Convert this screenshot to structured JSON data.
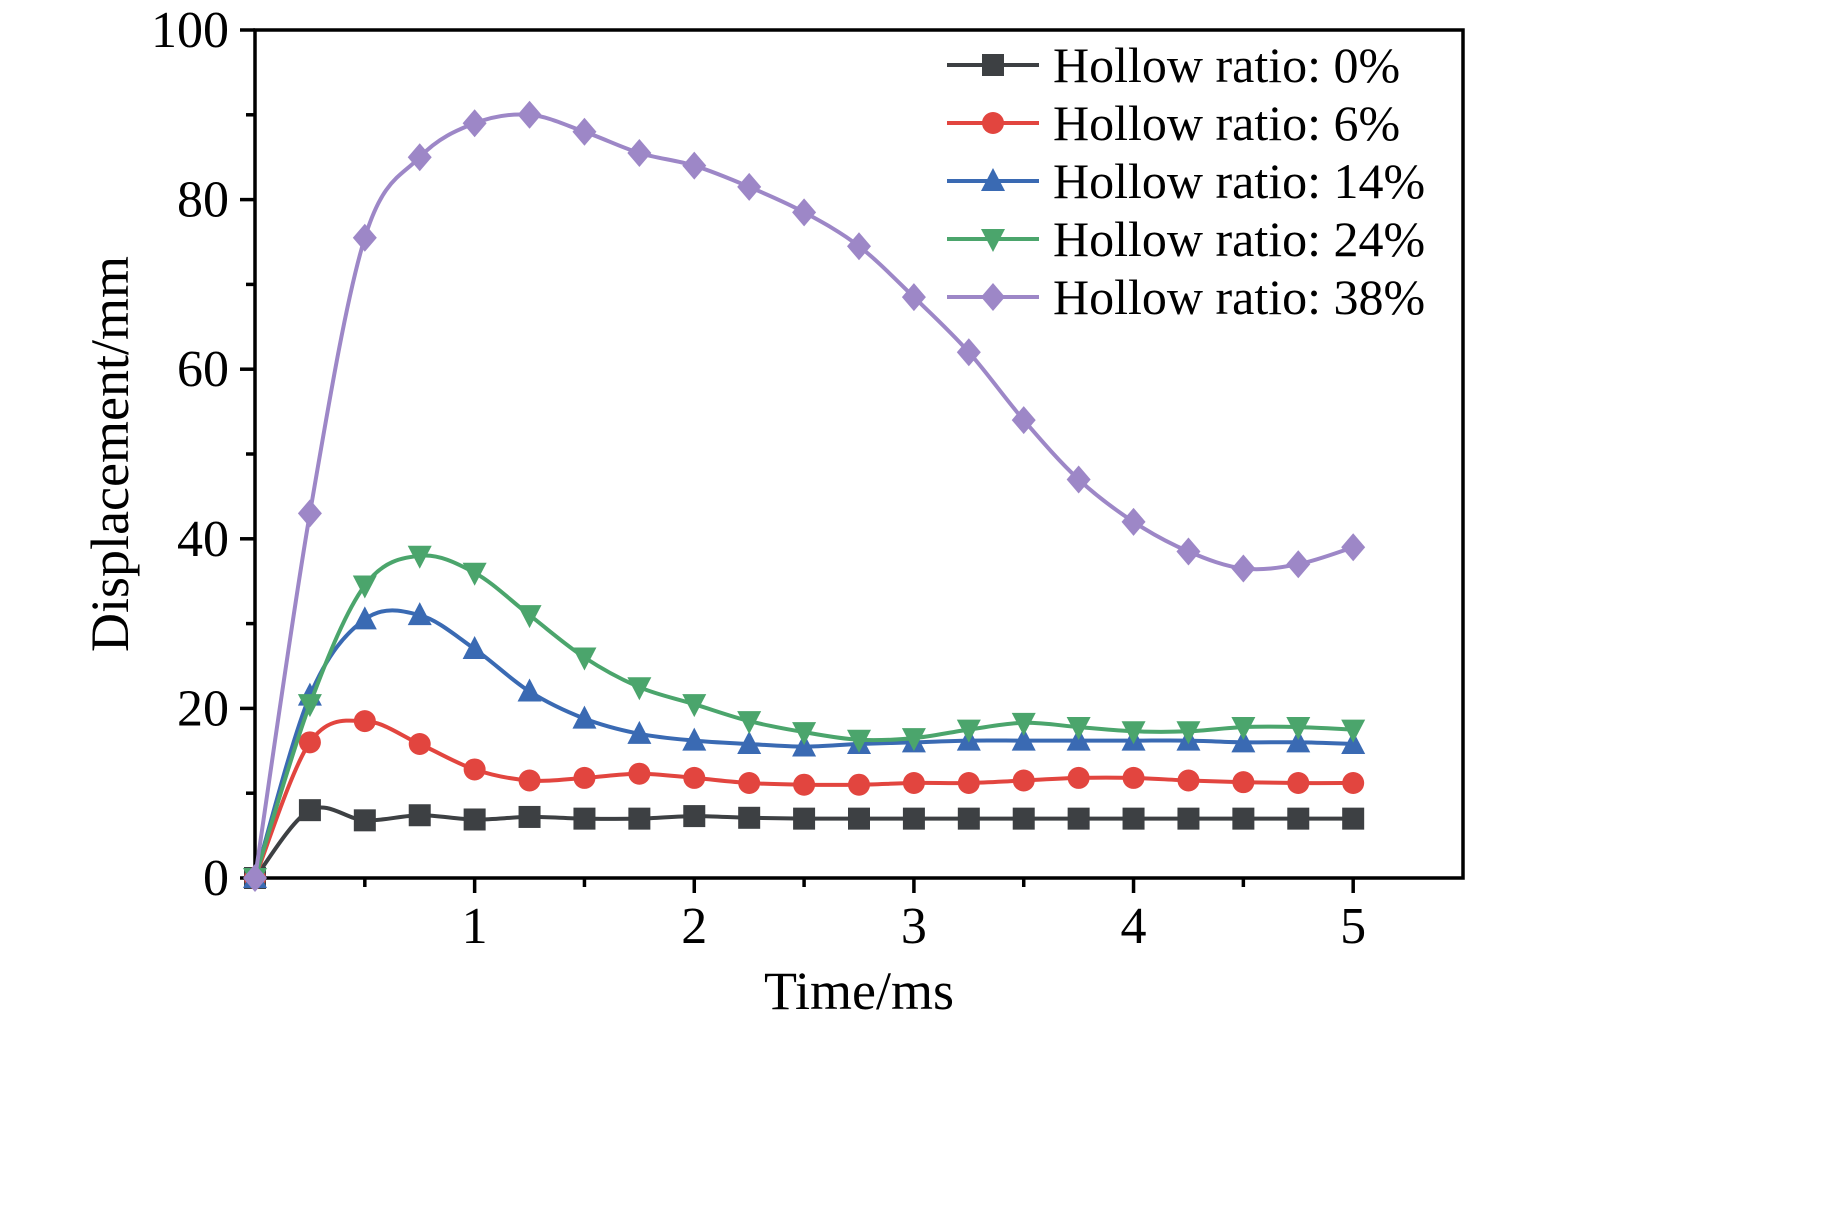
{
  "figure": {
    "background": "#ffffff",
    "frame_color": "#000000"
  },
  "chart_data": {
    "type": "line",
    "title": "",
    "xlabel": "Time/ms",
    "ylabel": "Displacement/mm",
    "xlim": [
      0,
      5.5
    ],
    "ylim": [
      0,
      100
    ],
    "xticks": [
      1,
      2,
      3,
      4,
      5
    ],
    "yticks": [
      0,
      20,
      40,
      60,
      80,
      100
    ],
    "x_minor_step": 0.5,
    "y_minor_step": 10,
    "grid": false,
    "legend_position": "top-right",
    "x": [
      0,
      0.25,
      0.5,
      0.75,
      1,
      1.25,
      1.5,
      1.75,
      2,
      2.25,
      2.5,
      2.75,
      3,
      3.25,
      3.5,
      3.75,
      4,
      4.25,
      4.5,
      4.75,
      5
    ],
    "series": [
      {
        "name": "Hollow ratio: 0%",
        "color": "#3d4043",
        "marker": "square",
        "values": [
          0,
          8,
          6.8,
          7.4,
          6.9,
          7.2,
          7,
          7,
          7.3,
          7.1,
          7,
          7,
          7,
          7,
          7,
          7,
          7,
          7,
          7,
          7,
          7
        ]
      },
      {
        "name": "Hollow ratio: 6%",
        "color": "#e2453f",
        "marker": "circle",
        "values": [
          0,
          16,
          18.5,
          15.8,
          12.8,
          11.5,
          11.8,
          12.3,
          11.8,
          11.2,
          11,
          11,
          11.2,
          11.2,
          11.5,
          11.8,
          11.8,
          11.5,
          11.3,
          11.2,
          11.2
        ]
      },
      {
        "name": "Hollow ratio: 14%",
        "color": "#3a6ab3",
        "marker": "triangle-up",
        "values": [
          0,
          21.5,
          30.5,
          31,
          27,
          22,
          18.8,
          17,
          16.2,
          15.8,
          15.5,
          15.8,
          16,
          16.2,
          16.2,
          16.2,
          16.2,
          16.2,
          16,
          16,
          15.8
        ]
      },
      {
        "name": "Hollow ratio: 24%",
        "color": "#4ba56c",
        "marker": "triangle-down",
        "values": [
          0,
          20.5,
          34.5,
          38,
          36,
          31,
          26,
          22.5,
          20.5,
          18.5,
          17.2,
          16.3,
          16.5,
          17.5,
          18.3,
          17.8,
          17.3,
          17.3,
          17.8,
          17.8,
          17.5
        ]
      },
      {
        "name": "Hollow ratio: 38%",
        "color": "#9d87c7",
        "marker": "diamond",
        "values": [
          0,
          43,
          75.5,
          85,
          89,
          90,
          88,
          85.5,
          84,
          81.5,
          78.5,
          74.5,
          68.5,
          62,
          54,
          47,
          42,
          38.5,
          36.5,
          37,
          39
        ]
      }
    ]
  }
}
